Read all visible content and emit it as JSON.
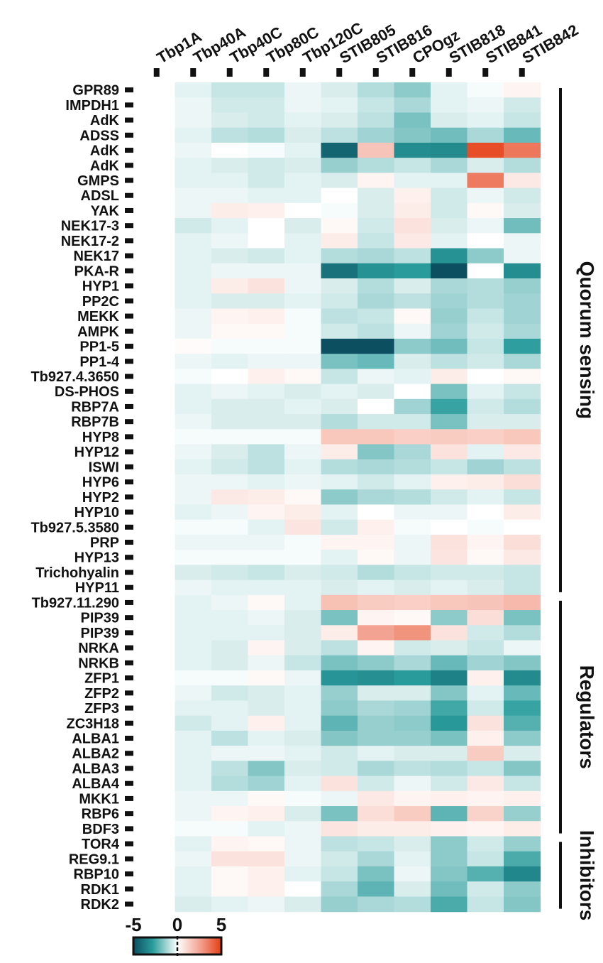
{
  "chart_data": {
    "type": "heatmap",
    "title": "",
    "columns": [
      "Tbp1A",
      "Tbp40A",
      "Tbp40C",
      "Tbp80C",
      "Tbp120C",
      "STIB805",
      "STIB816",
      "CPOgz",
      "STIB818",
      "STIB841",
      "STIB842"
    ],
    "rows": [
      "GPR89",
      "IMPDH1",
      "AdK",
      "ADSS",
      "AdK",
      "AdK",
      "GMPS",
      "ADSL",
      "YAK",
      "NEK17-3",
      "NEK17-2",
      "NEK17",
      "PKA-R",
      "HYP1",
      "PP2C",
      "MEKK",
      "AMPK",
      "PP1-5",
      "PP1-4",
      "Tb927.4.3650",
      "DS-PHOS",
      "RBP7A",
      "RBP7B",
      "HYP8",
      "HYP12",
      "ISWI",
      "HYP6",
      "HYP2",
      "HYP10",
      "Tb927.5.3580",
      "PRP",
      "HYP13",
      "Trichohyalin",
      "HYP11",
      "Tb927.11.290",
      "PIP39",
      "PIP39",
      "NRKA",
      "NRKB",
      "ZFP1",
      "ZFP2",
      "ZFP3",
      "ZC3H18",
      "ALBA1",
      "ALBA2",
      "ALBA3",
      "ALBA4",
      "MKK1",
      "RBP6",
      "BDF3",
      "TOR4",
      "REG9.1",
      "RBP10",
      "RDK1",
      "RDK2"
    ],
    "values": [
      [
        0,
        -0.3,
        -0.6,
        -0.6,
        -0.2,
        -0.4,
        -0.8,
        -1.2,
        -0.3,
        -0.1,
        0.3
      ],
      [
        0,
        -0.2,
        -0.5,
        -0.5,
        -0.2,
        -0.3,
        -0.6,
        -0.9,
        -0.3,
        -0.2,
        -0.5
      ],
      [
        0,
        -0.2,
        -0.4,
        -0.5,
        -0.3,
        -0.4,
        -0.7,
        -1.4,
        -0.4,
        -0.3,
        -0.6
      ],
      [
        0,
        -0.3,
        -0.7,
        -0.8,
        -0.4,
        -0.7,
        -1.0,
        -1.3,
        -1.5,
        -0.9,
        -1.6
      ],
      [
        0,
        -0.2,
        0,
        -0.1,
        -0.3,
        -4.2,
        1.6,
        -2.8,
        -2.9,
        4.6,
        3.6
      ],
      [
        0,
        -0.3,
        -0.4,
        -0.5,
        -0.4,
        -1.1,
        -0.8,
        -0.6,
        -0.9,
        -0.4,
        -0.8
      ],
      [
        0,
        -0.3,
        -0.3,
        -0.5,
        -0.3,
        -0.4,
        0.3,
        -0.3,
        -0.3,
        3.5,
        0.6
      ],
      [
        0,
        -0.2,
        -0.2,
        -0.3,
        -0.3,
        0,
        -0.4,
        0.4,
        -0.5,
        -0.2,
        -0.5
      ],
      [
        0,
        -0.2,
        0.5,
        0.4,
        0,
        -0.1,
        -0.4,
        0.5,
        -0.5,
        0.2,
        -0.4
      ],
      [
        0,
        -0.5,
        -0.3,
        0,
        -0.4,
        0.2,
        -0.5,
        0.8,
        -0.4,
        -0.2,
        -1.5
      ],
      [
        0,
        -0.3,
        -0.2,
        0,
        -0.3,
        0.5,
        -0.6,
        0.6,
        -0.3,
        0,
        -0.2
      ],
      [
        0,
        -0.3,
        -0.4,
        -0.5,
        -0.3,
        -0.8,
        -0.9,
        -0.7,
        -2.6,
        -1.2,
        -0.2
      ],
      [
        0,
        -0.3,
        -0.2,
        -0.2,
        -0.2,
        -3.8,
        -2.6,
        -2.3,
        -5.0,
        0,
        -2.8
      ],
      [
        0,
        -0.3,
        0.5,
        0.8,
        -0.2,
        -0.4,
        -0.8,
        -0.4,
        -0.9,
        -0.8,
        -1.1
      ],
      [
        0,
        -0.3,
        -0.4,
        -0.4,
        -0.3,
        -0.5,
        -0.9,
        -0.7,
        -1.0,
        -0.8,
        -1.0
      ],
      [
        0,
        -0.2,
        0.3,
        0.4,
        -0.1,
        -0.7,
        -0.6,
        0.2,
        -1.1,
        -0.6,
        -1.0
      ],
      [
        0,
        -0.2,
        0.2,
        0.2,
        -0.1,
        -0.5,
        -0.7,
        -0.2,
        -1.0,
        -0.5,
        -0.9
      ],
      [
        0,
        0.1,
        -0.1,
        -0.1,
        -0.1,
        -5.0,
        -5.0,
        -1.2,
        -1.5,
        -0.6,
        -2.2
      ],
      [
        0,
        -0.2,
        -0.3,
        -0.2,
        -0.2,
        -1.4,
        -1.6,
        -0.4,
        -0.7,
        -0.5,
        -0.9
      ],
      [
        0,
        -0.1,
        0,
        0.4,
        0.2,
        -0.6,
        -0.2,
        -0.3,
        0.5,
        0,
        0.2
      ],
      [
        0,
        -0.3,
        -0.2,
        -0.3,
        -0.4,
        -0.3,
        -0.4,
        0,
        -1.4,
        -0.3,
        -0.6
      ],
      [
        0,
        -0.3,
        -0.4,
        -0.4,
        -0.3,
        -0.4,
        0,
        -1.0,
        -2.1,
        -0.5,
        -0.8
      ],
      [
        0,
        -0.2,
        -0.4,
        -0.4,
        -0.4,
        -0.8,
        -0.5,
        -0.5,
        -1.4,
        -0.4,
        -0.4
      ],
      [
        0,
        -0.1,
        -0.1,
        -0.1,
        -0.1,
        1.5,
        1.5,
        1.3,
        1.4,
        1.3,
        1.5
      ],
      [
        0,
        -0.2,
        -0.4,
        -0.7,
        -0.2,
        0.5,
        -1.3,
        -0.9,
        0.8,
        -0.3,
        0.6
      ],
      [
        0,
        -0.3,
        -0.5,
        -0.7,
        -0.3,
        -0.8,
        -0.9,
        -0.8,
        -0.6,
        -1.0,
        -0.7
      ],
      [
        0,
        -0.2,
        -0.2,
        -0.3,
        -0.2,
        -0.3,
        -0.5,
        -0.3,
        0.4,
        0.5,
        0.9
      ],
      [
        0,
        -0.2,
        0.6,
        0.5,
        0.2,
        -1.2,
        -0.9,
        -0.8,
        -0.5,
        -0.3,
        -0.6
      ],
      [
        0,
        -0.3,
        -0.2,
        0.3,
        0.5,
        -0.3,
        0,
        -0.2,
        -0.2,
        0,
        0.5
      ],
      [
        0,
        -0.1,
        -0.1,
        -0.3,
        0.7,
        -0.5,
        0.4,
        -0.1,
        0,
        -0.1,
        0
      ],
      [
        0,
        -0.2,
        -0.2,
        -0.2,
        -0.1,
        0.3,
        0.3,
        -0.2,
        0.8,
        0.3,
        0.9
      ],
      [
        0,
        -0.1,
        -0.1,
        -0.1,
        -0.1,
        -0.3,
        0.2,
        -0.2,
        0.7,
        0.2,
        0.6
      ],
      [
        0,
        -0.4,
        -0.5,
        -0.6,
        -0.4,
        -0.5,
        -0.8,
        -0.6,
        -0.5,
        -0.5,
        -0.6
      ],
      [
        0,
        -0.2,
        -0.3,
        -0.3,
        -0.3,
        -0.4,
        -0.3,
        -0.4,
        -0.3,
        -0.4,
        -0.6
      ],
      [
        0,
        -0.3,
        -0.2,
        0.2,
        -0.3,
        1.7,
        1.4,
        1.3,
        1.5,
        1.6,
        1.9
      ],
      [
        0,
        -0.3,
        -0.3,
        -0.2,
        -0.4,
        -1.4,
        0.3,
        0.2,
        -1.2,
        0.9,
        -1.4
      ],
      [
        0,
        -0.3,
        -0.3,
        -0.3,
        -0.4,
        0.5,
        2.5,
        2.9,
        0.8,
        -0.5,
        -0.8
      ],
      [
        0,
        -0.3,
        -0.4,
        0.3,
        -0.4,
        -0.7,
        0.3,
        -0.5,
        -0.4,
        -0.6,
        -0.2
      ],
      [
        0,
        -0.3,
        -0.4,
        -0.2,
        -0.6,
        -1.4,
        -1.2,
        -0.9,
        -1.6,
        -1.0,
        -1.3
      ],
      [
        0,
        -0.1,
        -0.1,
        0.2,
        -0.2,
        -2.5,
        -2.7,
        -2.3,
        -3.2,
        0.4,
        -2.9
      ],
      [
        0,
        -0.2,
        -0.5,
        -0.4,
        -0.3,
        -1.1,
        -0.4,
        -0.4,
        -1.3,
        -0.3,
        -1.6
      ],
      [
        0,
        -0.3,
        -0.3,
        -0.4,
        -0.3,
        -1.2,
        -0.9,
        -1.0,
        -2.0,
        -0.5,
        -2.1
      ],
      [
        0,
        -0.5,
        -0.3,
        0.4,
        -0.3,
        -1.7,
        -1.1,
        -1.2,
        -2.4,
        0.8,
        -1.8
      ],
      [
        0,
        -0.3,
        -0.7,
        -0.3,
        -0.4,
        -1.3,
        -1.1,
        -1.1,
        -1.4,
        0.4,
        -1.2
      ],
      [
        0,
        -0.3,
        -0.2,
        -0.2,
        -0.3,
        -0.5,
        -0.3,
        -0.4,
        -0.4,
        1.4,
        -0.4
      ],
      [
        0,
        -0.3,
        -0.7,
        -1.3,
        -0.4,
        -0.5,
        -0.9,
        -0.7,
        -0.8,
        -0.6,
        -1.3
      ],
      [
        0,
        -0.3,
        -0.8,
        -1.0,
        -0.3,
        0.8,
        -0.5,
        -0.2,
        -0.5,
        0.6,
        -0.6
      ],
      [
        0,
        -0.2,
        -0.2,
        0.2,
        -0.1,
        -0.2,
        0.6,
        0.3,
        0.4,
        0.3,
        0.4
      ],
      [
        0,
        -0.2,
        0.3,
        0.4,
        -0.4,
        -1.4,
        0.9,
        1.4,
        -1.7,
        1.2,
        -1.1
      ],
      [
        0,
        -0.1,
        -0.1,
        -0.3,
        -0.2,
        0.7,
        0.5,
        0.5,
        0.4,
        0.3,
        0.5
      ],
      [
        0,
        -0.3,
        0.3,
        0.2,
        -0.2,
        -0.7,
        -0.6,
        -0.4,
        -1.2,
        -0.5,
        -1.1
      ],
      [
        0,
        -0.2,
        0.8,
        0.8,
        -0.2,
        -0.5,
        -0.9,
        -0.3,
        -1.2,
        -0.6,
        -1.9
      ],
      [
        0,
        -0.3,
        0.2,
        0.4,
        -0.3,
        -0.6,
        -1.4,
        -0.2,
        -1.3,
        -1.8,
        -3.0
      ],
      [
        0,
        -0.3,
        0.2,
        0.4,
        0,
        -0.9,
        -1.7,
        -0.4,
        -1.5,
        -0.5,
        -1.2
      ],
      [
        0,
        -0.4,
        -0.3,
        -0.2,
        -0.4,
        -1.1,
        -0.9,
        -0.8,
        -1.9,
        -0.6,
        -1.3
      ]
    ],
    "scale": {
      "min": -5,
      "mid": 0,
      "max": 5
    },
    "groups": [
      {
        "label": "Quorum sensing",
        "start_row": 0,
        "end_row": 33
      },
      {
        "label": "Regulators",
        "start_row": 34,
        "end_row": 49
      },
      {
        "label": "Inhibitors",
        "start_row": 50,
        "end_row": 54
      }
    ],
    "legend": {
      "ticks": [
        "-5",
        "0",
        "5"
      ],
      "placement": "bottom-left"
    },
    "colors": {
      "low": "#0b4f61",
      "lowmid": "#2a9c9c",
      "mid": "#ffffff",
      "highmid": "#f29a86",
      "high": "#e53d12"
    }
  }
}
